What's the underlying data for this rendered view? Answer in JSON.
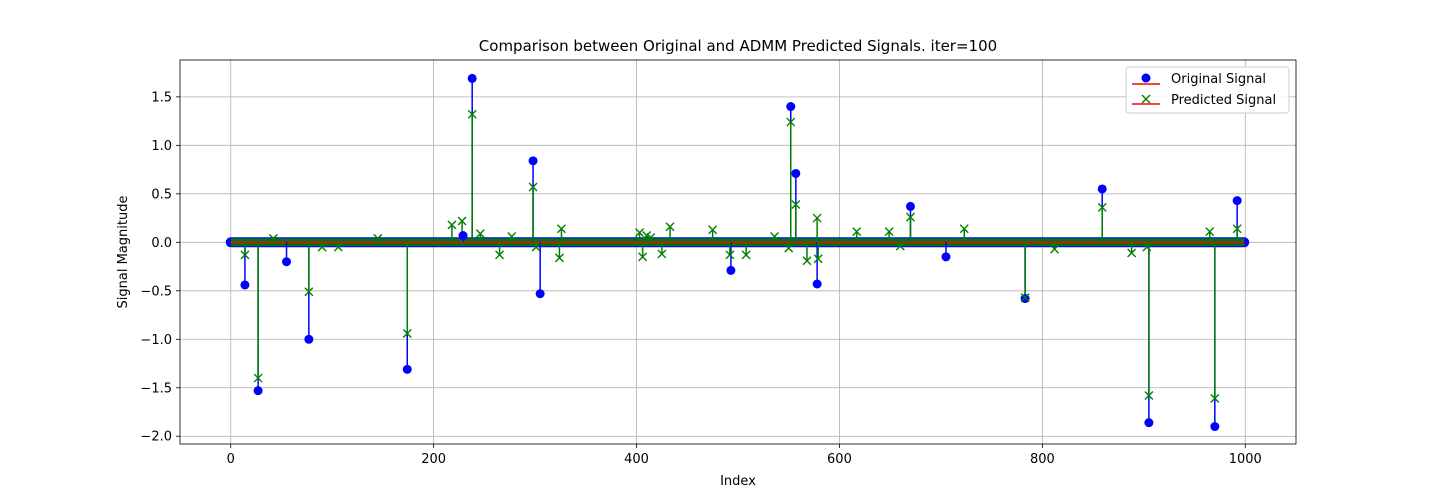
{
  "chart_data": {
    "type": "stem",
    "title": "Comparison between Original and ADMM Predicted Signals. iter=100",
    "xlabel": "Index",
    "ylabel": "Signal Magnitude",
    "xlim": [
      -50,
      1050
    ],
    "ylim": [
      -2.08,
      1.88
    ],
    "xticks": [
      0,
      200,
      400,
      600,
      800,
      1000
    ],
    "xtick_labels": [
      "0",
      "200",
      "400",
      "600",
      "800",
      "1000"
    ],
    "yticks": [
      1.5,
      1.0,
      0.5,
      0.0,
      -0.5,
      -1.0,
      -1.5,
      -2.0
    ],
    "ytick_labels": [
      "1.5",
      "1.0",
      "0.5",
      "0.0",
      "−0.5",
      "−1.0",
      "−1.5",
      "−2.0"
    ],
    "grid": true,
    "legend_position": "top-right",
    "baseline_range": [
      0,
      999
    ],
    "series": [
      {
        "name": "Original Signal",
        "marker": "circle",
        "color": "#0000ff",
        "baseline_color": "#ff0000",
        "x": [
          14,
          27,
          55,
          77,
          174,
          229,
          238,
          298,
          305,
          493,
          552,
          557,
          578,
          670,
          705,
          783,
          859,
          905,
          970,
          992
        ],
        "y": [
          -0.44,
          -1.53,
          -0.2,
          -1.0,
          -1.31,
          0.07,
          1.69,
          0.84,
          -0.53,
          -0.29,
          1.4,
          0.71,
          -0.43,
          0.37,
          -0.15,
          -0.58,
          0.55,
          -1.86,
          -1.9,
          0.43
        ]
      },
      {
        "name": "Predicted Signal",
        "marker": "x",
        "color": "#008000",
        "baseline_color": "#ff0000",
        "x": [
          14,
          27,
          42,
          77,
          90,
          106,
          145,
          174,
          218,
          228,
          238,
          246,
          265,
          277,
          298,
          301,
          324,
          326,
          403,
          406,
          410,
          414,
          425,
          433,
          475,
          492,
          508,
          536,
          550,
          552,
          557,
          568,
          578,
          579,
          617,
          649,
          660,
          670,
          723,
          783,
          812,
          859,
          888,
          903,
          905,
          965,
          970,
          992
        ],
        "y": [
          -0.13,
          -1.4,
          0.04,
          -0.51,
          -0.05,
          -0.05,
          0.04,
          -0.94,
          0.18,
          0.22,
          1.32,
          0.09,
          -0.13,
          0.06,
          0.57,
          -0.05,
          -0.16,
          0.14,
          0.1,
          -0.15,
          0.07,
          0.05,
          -0.12,
          0.16,
          0.13,
          -0.13,
          -0.13,
          0.06,
          -0.06,
          1.24,
          0.39,
          -0.19,
          0.25,
          -0.17,
          0.11,
          0.11,
          -0.04,
          0.26,
          0.14,
          -0.57,
          -0.07,
          0.36,
          -0.11,
          -0.05,
          -1.58,
          0.11,
          -1.61,
          0.14
        ]
      }
    ]
  }
}
